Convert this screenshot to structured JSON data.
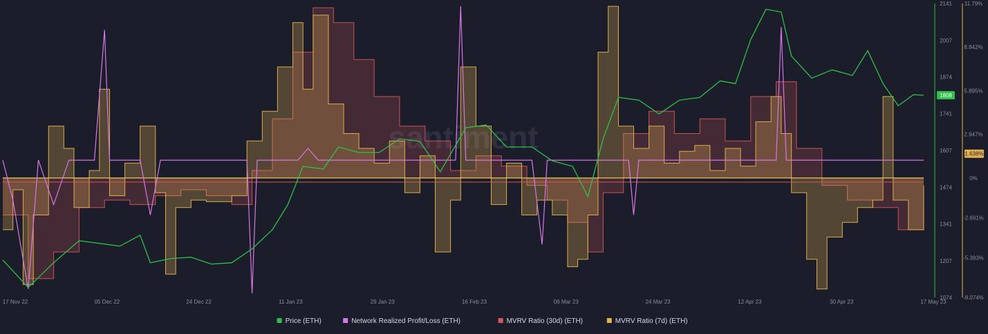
{
  "watermark": "santiment",
  "colors": {
    "background": "#1c1d2b",
    "price": "#2fbf4a",
    "nrpl": "#d877e6",
    "mvrv30": "#d65a5a",
    "mvrv7": "#e3b34f",
    "zero_line": "#e8c75a"
  },
  "chart_data": {
    "type": "line",
    "x_labels": [
      "17 Nov 22",
      "05 Dec 22",
      "24 Dec 22",
      "11 Jan 23",
      "29 Jan 23",
      "16 Feb 23",
      "06 Mar 23",
      "24 Mar 23",
      "12 Apr 23",
      "30 Apr 23",
      "17 May 23"
    ],
    "x_range": [
      "2022-11-17",
      "2023-05-17"
    ],
    "price_axis": {
      "ticks": [
        "2141",
        "2007",
        "1874",
        "1741",
        "1607",
        "1474",
        "1341",
        "1207",
        "1074"
      ],
      "ylim": [
        1074,
        2141
      ],
      "current": "1808"
    },
    "mvrv_axis": {
      "ticks": [
        "11.79%",
        "8.842%",
        "5.895%",
        "2.947%",
        "0%",
        "-2.691%",
        "-5.383%",
        "-8.074%"
      ],
      "ylim": [
        -8.074,
        11.79
      ],
      "current": "1.638%"
    },
    "series": [
      {
        "name": "Price (ETH)",
        "axis": "price",
        "points": [
          [
            "2022-11-17",
            1210
          ],
          [
            "2022-11-22",
            1110
          ],
          [
            "2022-11-27",
            1200
          ],
          [
            "2022-12-02",
            1280
          ],
          [
            "2022-12-06",
            1270
          ],
          [
            "2022-12-10",
            1260
          ],
          [
            "2022-12-14",
            1300
          ],
          [
            "2022-12-16",
            1200
          ],
          [
            "2022-12-20",
            1215
          ],
          [
            "2022-12-24",
            1220
          ],
          [
            "2022-12-28",
            1195
          ],
          [
            "2023-01-01",
            1200
          ],
          [
            "2023-01-05",
            1250
          ],
          [
            "2023-01-09",
            1320
          ],
          [
            "2023-01-12",
            1410
          ],
          [
            "2023-01-15",
            1550
          ],
          [
            "2023-01-19",
            1540
          ],
          [
            "2023-01-22",
            1620
          ],
          [
            "2023-01-26",
            1600
          ],
          [
            "2023-01-30",
            1600
          ],
          [
            "2023-02-03",
            1650
          ],
          [
            "2023-02-07",
            1640
          ],
          [
            "2023-02-11",
            1530
          ],
          [
            "2023-02-16",
            1690
          ],
          [
            "2023-02-20",
            1700
          ],
          [
            "2023-02-24",
            1620
          ],
          [
            "2023-03-01",
            1620
          ],
          [
            "2023-03-05",
            1570
          ],
          [
            "2023-03-09",
            1550
          ],
          [
            "2023-03-12",
            1440
          ],
          [
            "2023-03-15",
            1650
          ],
          [
            "2023-03-18",
            1800
          ],
          [
            "2023-03-22",
            1790
          ],
          [
            "2023-03-26",
            1740
          ],
          [
            "2023-03-30",
            1790
          ],
          [
            "2023-04-03",
            1800
          ],
          [
            "2023-04-07",
            1860
          ],
          [
            "2023-04-10",
            1850
          ],
          [
            "2023-04-13",
            2010
          ],
          [
            "2023-04-16",
            2120
          ],
          [
            "2023-04-19",
            2110
          ],
          [
            "2023-04-21",
            1950
          ],
          [
            "2023-04-25",
            1870
          ],
          [
            "2023-04-29",
            1900
          ],
          [
            "2023-05-03",
            1880
          ],
          [
            "2023-05-06",
            1970
          ],
          [
            "2023-05-09",
            1850
          ],
          [
            "2023-05-12",
            1770
          ],
          [
            "2023-05-15",
            1810
          ],
          [
            "2023-05-17",
            1808
          ]
        ]
      },
      {
        "name": "Network Realized Profit/Loss (ETH)",
        "axis": "mvrv",
        "baseline": 1.2,
        "points": [
          [
            "2022-11-17",
            1.2
          ],
          [
            "2022-11-19",
            -1.5
          ],
          [
            "2022-11-22",
            -7.5
          ],
          [
            "2022-11-24",
            1.2
          ],
          [
            "2022-11-27",
            -1.8
          ],
          [
            "2022-11-30",
            1.2
          ],
          [
            "2022-12-05",
            1.2
          ],
          [
            "2022-12-07",
            10.0
          ],
          [
            "2022-12-08",
            1.2
          ],
          [
            "2022-12-14",
            1.2
          ],
          [
            "2022-12-16",
            -2.5
          ],
          [
            "2022-12-18",
            1.2
          ],
          [
            "2023-01-04",
            1.2
          ],
          [
            "2023-01-05",
            -7.8
          ],
          [
            "2023-01-06",
            1.2
          ],
          [
            "2023-01-14",
            1.2
          ],
          [
            "2023-01-16",
            2.0
          ],
          [
            "2023-01-18",
            1.2
          ],
          [
            "2023-02-14",
            1.2
          ],
          [
            "2023-02-15",
            11.6
          ],
          [
            "2023-02-16",
            1.2
          ],
          [
            "2023-03-01",
            1.2
          ],
          [
            "2023-03-03",
            -4.5
          ],
          [
            "2023-03-04",
            1.2
          ],
          [
            "2023-03-20",
            1.2
          ],
          [
            "2023-03-21",
            -2.5
          ],
          [
            "2023-03-22",
            1.2
          ],
          [
            "2023-04-18",
            1.2
          ],
          [
            "2023-04-19",
            10.2
          ],
          [
            "2023-04-20",
            1.2
          ],
          [
            "2023-05-17",
            1.2
          ]
        ]
      },
      {
        "name": "MVRV Ratio (30d) (ETH)",
        "axis": "mvrv",
        "points": [
          [
            "2022-11-17",
            -2.5
          ],
          [
            "2022-11-22",
            -6.8
          ],
          [
            "2022-11-27",
            -5.0
          ],
          [
            "2022-12-02",
            -2.0
          ],
          [
            "2022-12-07",
            -1.5
          ],
          [
            "2022-12-12",
            -1.8
          ],
          [
            "2022-12-17",
            -1.2
          ],
          [
            "2022-12-22",
            -0.8
          ],
          [
            "2022-12-27",
            -1.2
          ],
          [
            "2023-01-01",
            -1.8
          ],
          [
            "2023-01-05",
            0.5
          ],
          [
            "2023-01-09",
            4.0
          ],
          [
            "2023-01-13",
            8.5
          ],
          [
            "2023-01-17",
            11.5
          ],
          [
            "2023-01-21",
            10.5
          ],
          [
            "2023-01-25",
            8.0
          ],
          [
            "2023-01-29",
            5.5
          ],
          [
            "2023-02-03",
            3.5
          ],
          [
            "2023-02-08",
            2.5
          ],
          [
            "2023-02-13",
            0.5
          ],
          [
            "2023-02-18",
            1.5
          ],
          [
            "2023-02-23",
            0.8
          ],
          [
            "2023-02-28",
            -0.5
          ],
          [
            "2023-03-04",
            -1.5
          ],
          [
            "2023-03-08",
            -3.0
          ],
          [
            "2023-03-12",
            -5.0
          ],
          [
            "2023-03-15",
            -1.0
          ],
          [
            "2023-03-19",
            3.0
          ],
          [
            "2023-03-24",
            4.5
          ],
          [
            "2023-03-29",
            3.0
          ],
          [
            "2023-04-03",
            4.0
          ],
          [
            "2023-04-08",
            2.5
          ],
          [
            "2023-04-13",
            5.5
          ],
          [
            "2023-04-18",
            6.5
          ],
          [
            "2023-04-22",
            2.0
          ],
          [
            "2023-04-27",
            -0.5
          ],
          [
            "2023-05-02",
            -1.5
          ],
          [
            "2023-05-07",
            -2.0
          ],
          [
            "2023-05-12",
            -3.5
          ],
          [
            "2023-05-17",
            -2.0
          ]
        ]
      },
      {
        "name": "MVRV Ratio (7d) (ETH)",
        "axis": "mvrv",
        "points": [
          [
            "2022-11-17",
            -3.5
          ],
          [
            "2022-11-19",
            -0.8
          ],
          [
            "2022-11-21",
            -7.2
          ],
          [
            "2022-11-23",
            -2.5
          ],
          [
            "2022-11-26",
            3.5
          ],
          [
            "2022-11-29",
            2.0
          ],
          [
            "2022-12-01",
            -2.0
          ],
          [
            "2022-12-04",
            0.5
          ],
          [
            "2022-12-06",
            6.0
          ],
          [
            "2022-12-08",
            -1.2
          ],
          [
            "2022-12-11",
            1.0
          ],
          [
            "2022-12-14",
            3.5
          ],
          [
            "2022-12-17",
            -1.0
          ],
          [
            "2022-12-19",
            -6.5
          ],
          [
            "2022-12-21",
            -2.0
          ],
          [
            "2022-12-24",
            -1.5
          ],
          [
            "2022-12-27",
            -1.6
          ],
          [
            "2023-01-01",
            -1.2
          ],
          [
            "2023-01-04",
            2.5
          ],
          [
            "2023-01-07",
            4.5
          ],
          [
            "2023-01-10",
            7.5
          ],
          [
            "2023-01-13",
            10.5
          ],
          [
            "2023-01-15",
            6.0
          ],
          [
            "2023-01-17",
            11.0
          ],
          [
            "2023-01-20",
            5.0
          ],
          [
            "2023-01-23",
            3.0
          ],
          [
            "2023-01-26",
            2.0
          ],
          [
            "2023-01-29",
            1.0
          ],
          [
            "2023-02-01",
            2.5
          ],
          [
            "2023-02-04",
            -1.0
          ],
          [
            "2023-02-07",
            1.5
          ],
          [
            "2023-02-10",
            -5.0
          ],
          [
            "2023-02-13",
            -1.5
          ],
          [
            "2023-02-15",
            7.5
          ],
          [
            "2023-02-18",
            3.5
          ],
          [
            "2023-02-21",
            -1.8
          ],
          [
            "2023-02-24",
            1.0
          ],
          [
            "2023-02-27",
            -2.5
          ],
          [
            "2023-03-02",
            -1.5
          ],
          [
            "2023-03-05",
            -2.5
          ],
          [
            "2023-03-08",
            -6.0
          ],
          [
            "2023-03-10",
            -5.5
          ],
          [
            "2023-03-12",
            -2.5
          ],
          [
            "2023-03-14",
            8.5
          ],
          [
            "2023-03-16",
            11.6
          ],
          [
            "2023-03-18",
            3.5
          ],
          [
            "2023-03-21",
            2.0
          ],
          [
            "2023-03-24",
            3.5
          ],
          [
            "2023-03-27",
            1.0
          ],
          [
            "2023-03-30",
            1.8
          ],
          [
            "2023-04-02",
            2.2
          ],
          [
            "2023-04-05",
            0.5
          ],
          [
            "2023-04-08",
            2.0
          ],
          [
            "2023-04-11",
            0.8
          ],
          [
            "2023-04-14",
            3.8
          ],
          [
            "2023-04-17",
            5.5
          ],
          [
            "2023-04-19",
            3.0
          ],
          [
            "2023-04-21",
            -1.0
          ],
          [
            "2023-04-24",
            -5.5
          ],
          [
            "2023-04-26",
            -7.5
          ],
          [
            "2023-04-28",
            -4.0
          ],
          [
            "2023-05-01",
            -3.0
          ],
          [
            "2023-05-04",
            -2.0
          ],
          [
            "2023-05-07",
            -1.5
          ],
          [
            "2023-05-09",
            5.5
          ],
          [
            "2023-05-11",
            -1.5
          ],
          [
            "2023-05-14",
            -3.5
          ],
          [
            "2023-05-17",
            -0.5
          ]
        ]
      }
    ],
    "legend": {
      "placement": "bottom-center",
      "items": [
        {
          "label": "Price (ETH)",
          "color": "#2fbf4a"
        },
        {
          "label": "Network Realized Profit/Loss (ETH)",
          "color": "#d877e6"
        },
        {
          "label": "MVRV Ratio (30d) (ETH)",
          "color": "#d65a5a"
        },
        {
          "label": "MVRV Ratio (7d) (ETH)",
          "color": "#e3b34f"
        }
      ]
    },
    "grid": false
  }
}
